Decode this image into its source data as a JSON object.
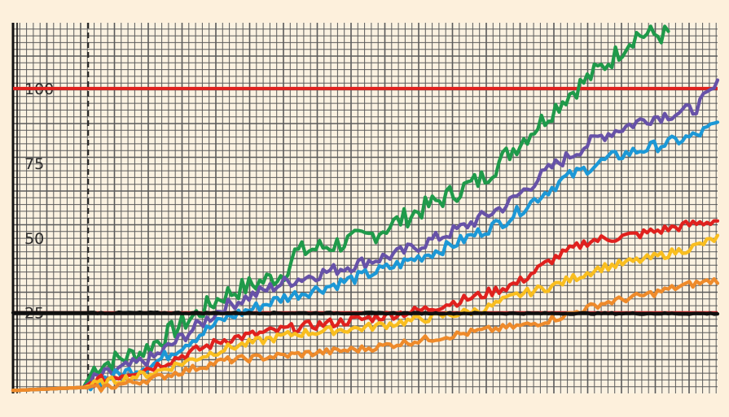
{
  "chart_data": {
    "type": "line",
    "title": "",
    "xlabel": "",
    "ylabel": "",
    "ylim": [
      -2,
      122
    ],
    "xlim": [
      0,
      300
    ],
    "yticks": [
      "25",
      "50",
      "75",
      "100"
    ],
    "ytick_values": [
      25,
      50,
      75,
      100
    ],
    "grid": true,
    "legend": "none",
    "reference_lines": [
      {
        "y": 100,
        "color": "#e0211e"
      },
      {
        "y": 25,
        "color": "#d4282a"
      },
      {
        "y": 25,
        "color": "#111111"
      }
    ],
    "vertical_marker": {
      "x": 32,
      "style": "dashed",
      "color": "#222222"
    },
    "series": [
      {
        "color": "#1f9a4a",
        "jitter": 3.5,
        "points": [
          [
            0,
            -1
          ],
          [
            30,
            0
          ],
          [
            35,
            7
          ],
          [
            55,
            12
          ],
          [
            90,
            31
          ],
          [
            115,
            38
          ],
          [
            120,
            45
          ],
          [
            150,
            50
          ],
          [
            180,
            62
          ],
          [
            200,
            70
          ],
          [
            225,
            89
          ],
          [
            235,
            97
          ],
          [
            255,
            110
          ],
          [
            265,
            118
          ],
          [
            280,
            118
          ]
        ]
      },
      {
        "color": "#6752a8",
        "jitter": 2.2,
        "points": [
          [
            0,
            -1
          ],
          [
            30,
            0
          ],
          [
            35,
            3
          ],
          [
            60,
            10
          ],
          [
            90,
            27
          ],
          [
            115,
            35
          ],
          [
            135,
            39
          ],
          [
            165,
            45
          ],
          [
            190,
            53
          ],
          [
            210,
            61
          ],
          [
            230,
            74
          ],
          [
            250,
            84
          ],
          [
            270,
            90
          ],
          [
            290,
            93
          ],
          [
            300,
            101
          ]
        ]
      },
      {
        "color": "#1c98d6",
        "jitter": 2.0,
        "points": [
          [
            0,
            -1
          ],
          [
            30,
            0
          ],
          [
            35,
            2
          ],
          [
            60,
            8
          ],
          [
            90,
            23
          ],
          [
            115,
            30
          ],
          [
            135,
            34
          ],
          [
            160,
            40
          ],
          [
            185,
            47
          ],
          [
            210,
            56
          ],
          [
            235,
            70
          ],
          [
            255,
            77
          ],
          [
            270,
            80
          ],
          [
            290,
            84
          ],
          [
            300,
            88
          ]
        ]
      },
      {
        "color": "#e0211e",
        "jitter": 1.6,
        "points": [
          [
            0,
            -1
          ],
          [
            30,
            0
          ],
          [
            35,
            2
          ],
          [
            60,
            7
          ],
          [
            90,
            16
          ],
          [
            120,
            20
          ],
          [
            150,
            23
          ],
          [
            175,
            26
          ],
          [
            200,
            31
          ],
          [
            215,
            35
          ],
          [
            230,
            43
          ],
          [
            245,
            49
          ],
          [
            265,
            51
          ],
          [
            285,
            54
          ],
          [
            300,
            56
          ]
        ]
      },
      {
        "color": "#f9be1f",
        "jitter": 1.4,
        "points": [
          [
            0,
            -1
          ],
          [
            30,
            0
          ],
          [
            35,
            1
          ],
          [
            60,
            5
          ],
          [
            90,
            13
          ],
          [
            120,
            18
          ],
          [
            150,
            20
          ],
          [
            175,
            23
          ],
          [
            200,
            26
          ],
          [
            215,
            31
          ],
          [
            230,
            34
          ],
          [
            250,
            40
          ],
          [
            270,
            43
          ],
          [
            290,
            47
          ],
          [
            300,
            50
          ]
        ]
      },
      {
        "color": "#ee8a2a",
        "jitter": 1.2,
        "points": [
          [
            0,
            -1
          ],
          [
            30,
            0
          ],
          [
            35,
            -0.5
          ],
          [
            60,
            3
          ],
          [
            90,
            9
          ],
          [
            120,
            11
          ],
          [
            150,
            13
          ],
          [
            175,
            16
          ],
          [
            200,
            19
          ],
          [
            220,
            21
          ],
          [
            235,
            24
          ],
          [
            250,
            28
          ],
          [
            270,
            31
          ],
          [
            285,
            34
          ],
          [
            300,
            36
          ]
        ]
      },
      {
        "color": "#111111",
        "jitter": 0.25,
        "points": [
          [
            0,
            25
          ],
          [
            300,
            24.7
          ]
        ]
      }
    ]
  }
}
